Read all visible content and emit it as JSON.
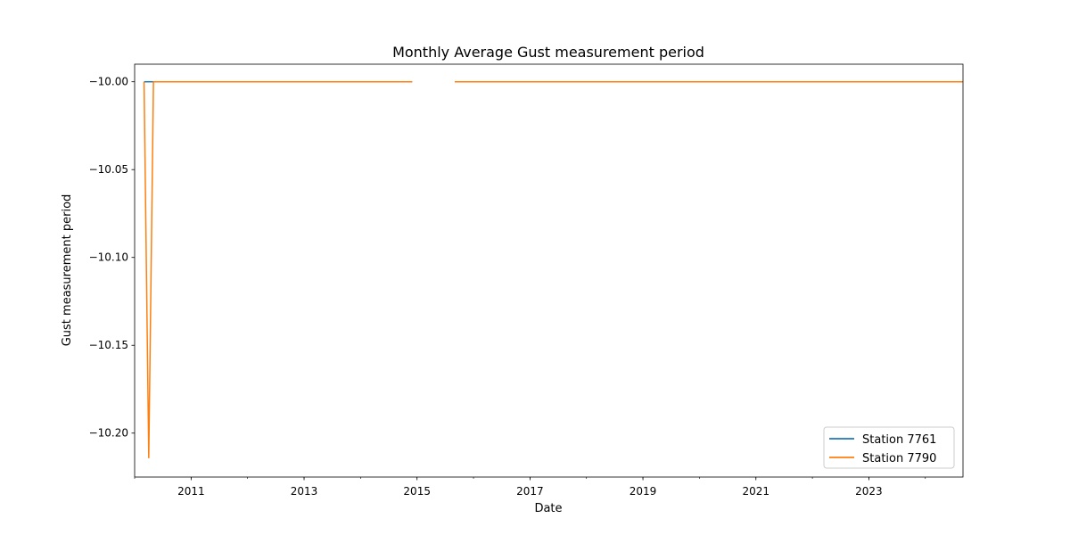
{
  "chart_data": {
    "type": "line",
    "title": "Monthly Average Gust measurement period",
    "xlabel": "Date",
    "ylabel": "Gust measurement period",
    "xlim": [
      "2010-01",
      "2024-09"
    ],
    "ylim": [
      -10.225,
      -9.99
    ],
    "x_ticks": [
      "2011",
      "2013",
      "2015",
      "2017",
      "2019",
      "2021",
      "2023"
    ],
    "y_ticks": [
      "−10.00",
      "−10.05",
      "−10.10",
      "−10.15",
      "−10.20"
    ],
    "legend_position": "lower-right",
    "series": [
      {
        "name": "Station 7761",
        "color": "#1f77b4",
        "segments": [
          [
            [
              "2010-03",
              -10.0
            ],
            [
              "2010-05",
              -10.0
            ]
          ]
        ]
      },
      {
        "name": "Station 7790",
        "color": "#ff7f0e",
        "segments": [
          [
            [
              "2010-03",
              -10.0
            ],
            [
              "2010-04",
              -10.214
            ],
            [
              "2010-05",
              -10.0
            ],
            [
              "2014-12",
              -10.0
            ]
          ],
          [
            [
              "2015-09",
              -10.0
            ],
            [
              "2024-09",
              -10.0
            ]
          ]
        ]
      }
    ]
  }
}
